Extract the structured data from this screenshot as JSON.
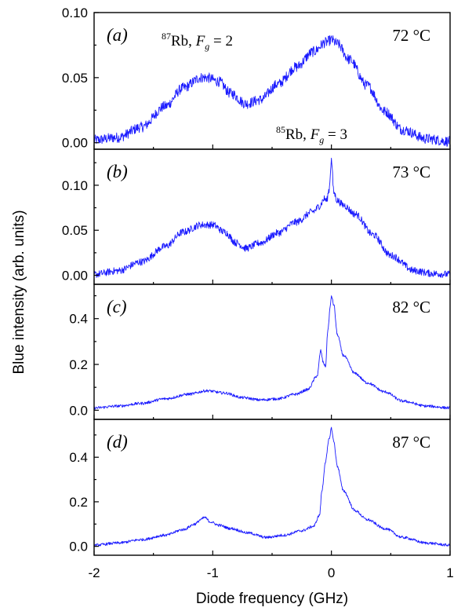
{
  "colors": {
    "trace": "#1a1aff",
    "axes": "#000000"
  },
  "xlabel": "Diode frequency (GHz)",
  "ylabel": "Blue intensity (arb. units)",
  "chart_data": [
    {
      "type": "line",
      "panel_label": "(a)",
      "temperature": "72 °C",
      "annotations": [
        {
          "isotope": "87",
          "element": "Rb",
          "state": "F",
          "sub": "g",
          "eq": " = 2"
        },
        {
          "isotope": "85",
          "element": "Rb",
          "state": "F",
          "sub": "g",
          "eq": " = 3"
        }
      ],
      "xlim": [
        -2,
        1
      ],
      "ylim": [
        -0.005,
        0.1
      ],
      "y_ticks": [
        "0.00",
        "0.05",
        "0.10"
      ],
      "y_tick_values": [
        0.0,
        0.05,
        0.1
      ],
      "noise": 0.004,
      "series": {
        "x": [
          -2.0,
          -1.8,
          -1.6,
          -1.4,
          -1.25,
          -1.1,
          -1.05,
          -0.95,
          -0.85,
          -0.72,
          -0.6,
          -0.45,
          -0.3,
          -0.15,
          -0.05,
          0.0,
          0.05,
          0.15,
          0.3,
          0.45,
          0.6,
          0.8,
          1.0
        ],
        "y": [
          0.002,
          0.004,
          0.012,
          0.028,
          0.042,
          0.05,
          0.05,
          0.047,
          0.038,
          0.03,
          0.033,
          0.045,
          0.058,
          0.07,
          0.077,
          0.079,
          0.076,
          0.064,
          0.044,
          0.024,
          0.01,
          0.003,
          0.001
        ]
      }
    },
    {
      "type": "line",
      "panel_label": "(b)",
      "temperature": "73 °C",
      "annotations": [],
      "xlim": [
        -2,
        1
      ],
      "ylim": [
        -0.01,
        0.14
      ],
      "y_ticks": [
        "0.00",
        "0.05",
        "0.10"
      ],
      "y_tick_values": [
        0.0,
        0.05,
        0.1
      ],
      "noise": 0.004,
      "series": {
        "x": [
          -2.0,
          -1.8,
          -1.6,
          -1.4,
          -1.25,
          -1.1,
          -1.0,
          -0.9,
          -0.8,
          -0.72,
          -0.6,
          -0.45,
          -0.3,
          -0.15,
          -0.1,
          -0.06,
          -0.04,
          -0.02,
          0.0,
          0.02,
          0.05,
          0.1,
          0.2,
          0.35,
          0.5,
          0.7,
          0.85,
          1.0
        ],
        "y": [
          0.001,
          0.005,
          0.015,
          0.032,
          0.048,
          0.056,
          0.056,
          0.048,
          0.036,
          0.03,
          0.036,
          0.047,
          0.059,
          0.071,
          0.077,
          0.085,
          0.083,
          0.095,
          0.128,
          0.092,
          0.083,
          0.078,
          0.068,
          0.045,
          0.022,
          0.005,
          0.002,
          0.001
        ]
      }
    },
    {
      "type": "line",
      "panel_label": "(c)",
      "temperature": "82 °C",
      "annotations": [],
      "xlim": [
        -2,
        1
      ],
      "ylim": [
        -0.04,
        0.55
      ],
      "y_ticks": [
        "0.0",
        "0.2",
        "0.4"
      ],
      "y_tick_values": [
        0.0,
        0.2,
        0.4
      ],
      "noise": 0.006,
      "series": {
        "x": [
          -2.0,
          -1.8,
          -1.6,
          -1.4,
          -1.2,
          -1.05,
          -0.9,
          -0.75,
          -0.6,
          -0.45,
          -0.3,
          -0.2,
          -0.12,
          -0.09,
          -0.07,
          -0.05,
          -0.03,
          -0.01,
          0.0,
          0.02,
          0.05,
          0.1,
          0.2,
          0.3,
          0.45,
          0.6,
          0.8,
          1.0
        ],
        "y": [
          0.01,
          0.018,
          0.03,
          0.05,
          0.07,
          0.085,
          0.075,
          0.055,
          0.045,
          0.05,
          0.07,
          0.09,
          0.15,
          0.26,
          0.21,
          0.19,
          0.35,
          0.45,
          0.5,
          0.46,
          0.33,
          0.24,
          0.16,
          0.12,
          0.08,
          0.04,
          0.018,
          0.01
        ]
      }
    },
    {
      "type": "line",
      "panel_label": "(d)",
      "temperature": "87 °C",
      "annotations": [],
      "xlim": [
        -2,
        1
      ],
      "ylim": [
        -0.04,
        0.57
      ],
      "y_ticks": [
        "0.0",
        "0.2",
        "0.4"
      ],
      "y_tick_values": [
        0.0,
        0.2,
        0.4
      ],
      "noise": 0.006,
      "series": {
        "x": [
          -2.0,
          -1.8,
          -1.6,
          -1.4,
          -1.25,
          -1.15,
          -1.1,
          -1.07,
          -1.02,
          -0.95,
          -0.85,
          -0.7,
          -0.55,
          -0.4,
          -0.25,
          -0.15,
          -0.1,
          -0.08,
          -0.05,
          -0.02,
          0.0,
          0.02,
          0.05,
          0.1,
          0.2,
          0.3,
          0.45,
          0.6,
          0.8,
          1.0
        ],
        "y": [
          0.005,
          0.015,
          0.03,
          0.05,
          0.075,
          0.1,
          0.12,
          0.13,
          0.11,
          0.095,
          0.08,
          0.06,
          0.04,
          0.05,
          0.07,
          0.09,
          0.14,
          0.25,
          0.38,
          0.48,
          0.53,
          0.47,
          0.36,
          0.25,
          0.16,
          0.12,
          0.08,
          0.04,
          0.015,
          0.005
        ]
      }
    }
  ]
}
